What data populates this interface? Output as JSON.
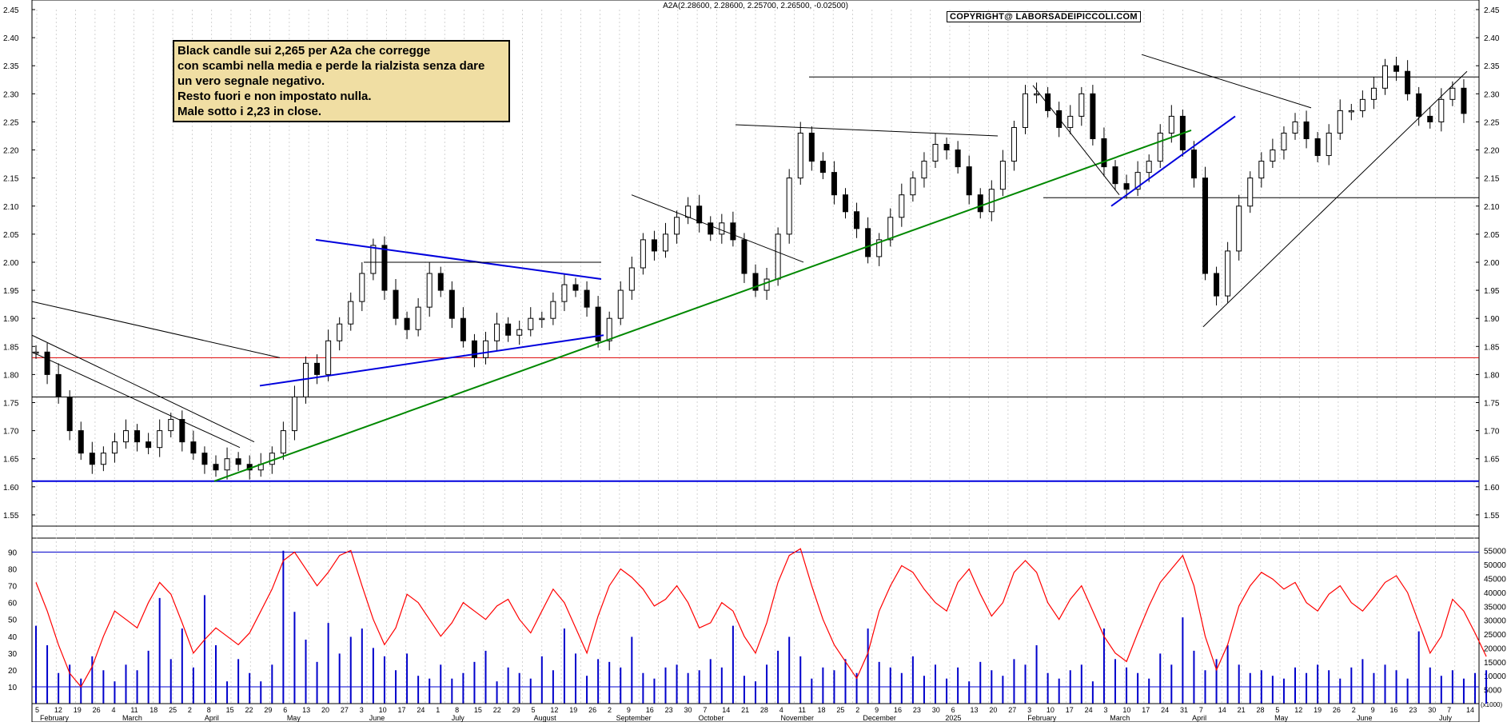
{
  "header": {
    "title": "A2A(2.28600, 2.28600, 2.25700, 2.26500, -0.02500)",
    "copyright": "COPYRIGHT@ LABORSADEIPICCOLI.COM"
  },
  "annotation": {
    "lines": [
      "Black candle sui 2,265 per A2a che corregge",
      "con scambi nella media e perde la rialzista senza dare",
      "un vero segnale negativo.",
      "Resto fuori e non impostato nulla.",
      "Male sotto i 2,23 in close."
    ]
  },
  "colors": {
    "candle": "#000000",
    "trend_green": "#008800",
    "trend_blue": "#0000dd",
    "support_red": "#dd0000",
    "oscillator_red": "#ff0000",
    "volume_blue": "#0000cc",
    "note_bg": "#f0dea3",
    "grid": "#c8c8c8"
  },
  "chart_data": [
    {
      "type": "candlestick",
      "title": "A2A",
      "ylim": [
        1.52,
        2.45
      ],
      "yticks": [
        "2.45",
        "2.40",
        "2.35",
        "2.30",
        "2.25",
        "2.20",
        "2.15",
        "2.10",
        "2.05",
        "2.00",
        "1.95",
        "1.90",
        "1.85",
        "1.80",
        "1.75",
        "1.70",
        "1.65",
        "1.60",
        "1.55"
      ],
      "last_candle": {
        "open": 2.286,
        "high": 2.286,
        "low": 2.257,
        "close": 2.265,
        "change": -0.025
      },
      "horizontal_levels": [
        {
          "value": 2.33,
          "color": "black",
          "label": ""
        },
        {
          "value": 2.115,
          "color": "black",
          "label": ""
        },
        {
          "value": 1.83,
          "color": "red",
          "label": ""
        },
        {
          "value": 1.76,
          "color": "black",
          "label": ""
        },
        {
          "value": 1.61,
          "color": "blue",
          "label": ""
        },
        {
          "value": 1.53,
          "color": "black",
          "label": ""
        }
      ],
      "close_series": [
        1.84,
        1.8,
        1.76,
        1.7,
        1.66,
        1.64,
        1.66,
        1.68,
        1.7,
        1.68,
        1.67,
        1.7,
        1.72,
        1.68,
        1.66,
        1.64,
        1.63,
        1.65,
        1.64,
        1.63,
        1.64,
        1.66,
        1.7,
        1.76,
        1.82,
        1.8,
        1.86,
        1.89,
        1.93,
        1.98,
        2.03,
        1.95,
        1.9,
        1.88,
        1.92,
        1.98,
        1.95,
        1.9,
        1.86,
        1.83,
        1.86,
        1.89,
        1.87,
        1.88,
        1.9,
        1.9,
        1.93,
        1.96,
        1.95,
        1.92,
        1.86,
        1.9,
        1.95,
        1.99,
        2.04,
        2.02,
        2.05,
        2.08,
        2.1,
        2.07,
        2.05,
        2.07,
        2.04,
        1.98,
        1.95,
        1.97,
        2.05,
        2.15,
        2.23,
        2.18,
        2.16,
        2.12,
        2.09,
        2.06,
        2.01,
        2.04,
        2.08,
        2.12,
        2.15,
        2.18,
        2.21,
        2.2,
        2.17,
        2.12,
        2.09,
        2.13,
        2.18,
        2.24,
        2.3,
        2.3,
        2.27,
        2.24,
        2.26,
        2.3,
        2.22,
        2.17,
        2.14,
        2.13,
        2.16,
        2.18,
        2.23,
        2.26,
        2.2,
        2.15,
        1.98,
        1.94,
        2.02,
        2.1,
        2.15,
        2.18,
        2.2,
        2.23,
        2.25,
        2.22,
        2.19,
        2.23,
        2.27,
        2.27,
        2.29,
        2.31,
        2.35,
        2.34,
        2.3,
        2.26,
        2.25,
        2.29,
        2.31,
        2.265
      ]
    },
    {
      "type": "line",
      "title": "",
      "ylim": [
        0,
        95
      ],
      "yticks": [
        "90",
        "80",
        "70",
        "60",
        "50",
        "40",
        "30",
        "20",
        "10"
      ],
      "horizontal_levels": [
        90,
        10
      ],
      "series": [
        {
          "name": "",
          "values": [
            72,
            55,
            35,
            18,
            10,
            22,
            40,
            55,
            50,
            45,
            60,
            72,
            65,
            48,
            30,
            38,
            45,
            40,
            35,
            42,
            55,
            68,
            85,
            90,
            80,
            70,
            78,
            88,
            91,
            70,
            50,
            35,
            45,
            65,
            60,
            50,
            40,
            48,
            60,
            55,
            50,
            58,
            62,
            50,
            42,
            55,
            68,
            60,
            45,
            30,
            52,
            70,
            80,
            75,
            68,
            58,
            62,
            70,
            60,
            45,
            48,
            60,
            55,
            40,
            30,
            48,
            72,
            88,
            92,
            70,
            50,
            35,
            25,
            15,
            30,
            55,
            70,
            82,
            78,
            68,
            60,
            55,
            72,
            80,
            65,
            52,
            60,
            78,
            85,
            78,
            60,
            50,
            62,
            70,
            55,
            40,
            30,
            25,
            42,
            58,
            72,
            80,
            88,
            70,
            40,
            20,
            35,
            58,
            70,
            78,
            74,
            68,
            72,
            60,
            55,
            65,
            70,
            60,
            55,
            63,
            72,
            76,
            66,
            48,
            30,
            40,
            62,
            55,
            42,
            28
          ]
        }
      ]
    },
    {
      "type": "bar",
      "title": "",
      "ylim": [
        0,
        57500
      ],
      "yticks": [
        "55000",
        "50000",
        "45000",
        "40000",
        "35000",
        "30000",
        "25000",
        "20000",
        "15000",
        "10000",
        "5000"
      ],
      "unit_label": "(x1000)",
      "horizontal_levels": [
        10000
      ],
      "series": [
        {
          "name": "",
          "values": [
            28000,
            21000,
            11000,
            14000,
            9000,
            17000,
            12000,
            8000,
            14000,
            12000,
            19000,
            38000,
            16000,
            27000,
            13000,
            39000,
            21000,
            8000,
            16000,
            11000,
            8000,
            14000,
            55000,
            33000,
            23000,
            15000,
            29000,
            18000,
            24000,
            27000,
            20000,
            17000,
            12000,
            18000,
            10000,
            9000,
            14000,
            9000,
            11000,
            15000,
            19000,
            8000,
            13000,
            11000,
            9000,
            17000,
            12000,
            27000,
            18000,
            10000,
            16000,
            15000,
            13000,
            24000,
            11000,
            9000,
            13000,
            14000,
            11000,
            12000,
            16000,
            13000,
            28000,
            10000,
            8000,
            14000,
            19000,
            24000,
            17000,
            9000,
            13000,
            12000,
            16000,
            11000,
            27000,
            15000,
            13000,
            11000,
            17000,
            10000,
            14000,
            9000,
            13000,
            8000,
            15000,
            12000,
            10000,
            16000,
            14000,
            21000,
            11000,
            9000,
            12000,
            14000,
            8000,
            27000,
            16000,
            13000,
            11000,
            9000,
            18000,
            14000,
            31000,
            19000,
            12000,
            16000,
            21000,
            14000,
            11000,
            12000,
            10000,
            9000,
            13000,
            11000,
            14000,
            12000,
            9000,
            13000,
            16000,
            11000,
            14000,
            12000,
            9000,
            26000,
            13000,
            10000,
            12000,
            9000,
            11000,
            12000
          ]
        }
      ]
    }
  ],
  "x_axis": {
    "day_ticks": [
      "5",
      "12",
      "19",
      "26",
      "4",
      "11",
      "18",
      "25",
      "2",
      "8",
      "15",
      "22",
      "29",
      "6",
      "13",
      "20",
      "27",
      "3",
      "10",
      "17",
      "24",
      "1",
      "8",
      "15",
      "22",
      "29",
      "5",
      "12",
      "19",
      "26",
      "2",
      "9",
      "16",
      "23",
      "30",
      "7",
      "14",
      "21",
      "28",
      "4",
      "11",
      "18",
      "25",
      "2",
      "9",
      "16",
      "23",
      "30",
      "6",
      "13",
      "20",
      "27",
      "3",
      "10",
      "17",
      "24",
      "3",
      "10",
      "17",
      "24",
      "31",
      "7",
      "14",
      "21",
      "28",
      "5",
      "12",
      "19",
      "26",
      "2",
      "9",
      "16",
      "23",
      "30",
      "7",
      "14"
    ],
    "months": [
      "February",
      "March",
      "April",
      "May",
      "June",
      "July",
      "August",
      "September",
      "October",
      "November",
      "December",
      "2025",
      "February",
      "March",
      "April",
      "May",
      "June",
      "July"
    ]
  }
}
